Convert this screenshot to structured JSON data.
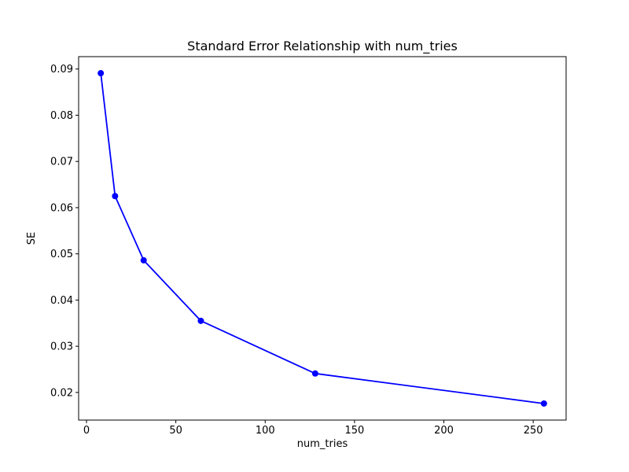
{
  "figure": {
    "background": "#ffffff",
    "spine_color": "#000000",
    "text_color": "#000000"
  },
  "chart_data": {
    "type": "line",
    "title": "Standard Error Relationship with num_tries",
    "xlabel": "num_tries",
    "ylabel": "SE",
    "x": [
      8,
      16,
      32,
      64,
      128,
      256
    ],
    "y": [
      0.0891,
      0.0625,
      0.0486,
      0.0355,
      0.0241,
      0.0176
    ],
    "line_color": "#0000ff",
    "marker": "o",
    "marker_color": "#0000ff",
    "xticks": [
      0,
      50,
      100,
      150,
      200,
      250
    ],
    "yticks": [
      0.02,
      0.03,
      0.04,
      0.05,
      0.06,
      0.07,
      0.08,
      0.09
    ],
    "xlim": [
      -4.4,
      268.4
    ],
    "ylim": [
      0.01402,
      0.09268
    ],
    "grid": false,
    "legend": null
  }
}
